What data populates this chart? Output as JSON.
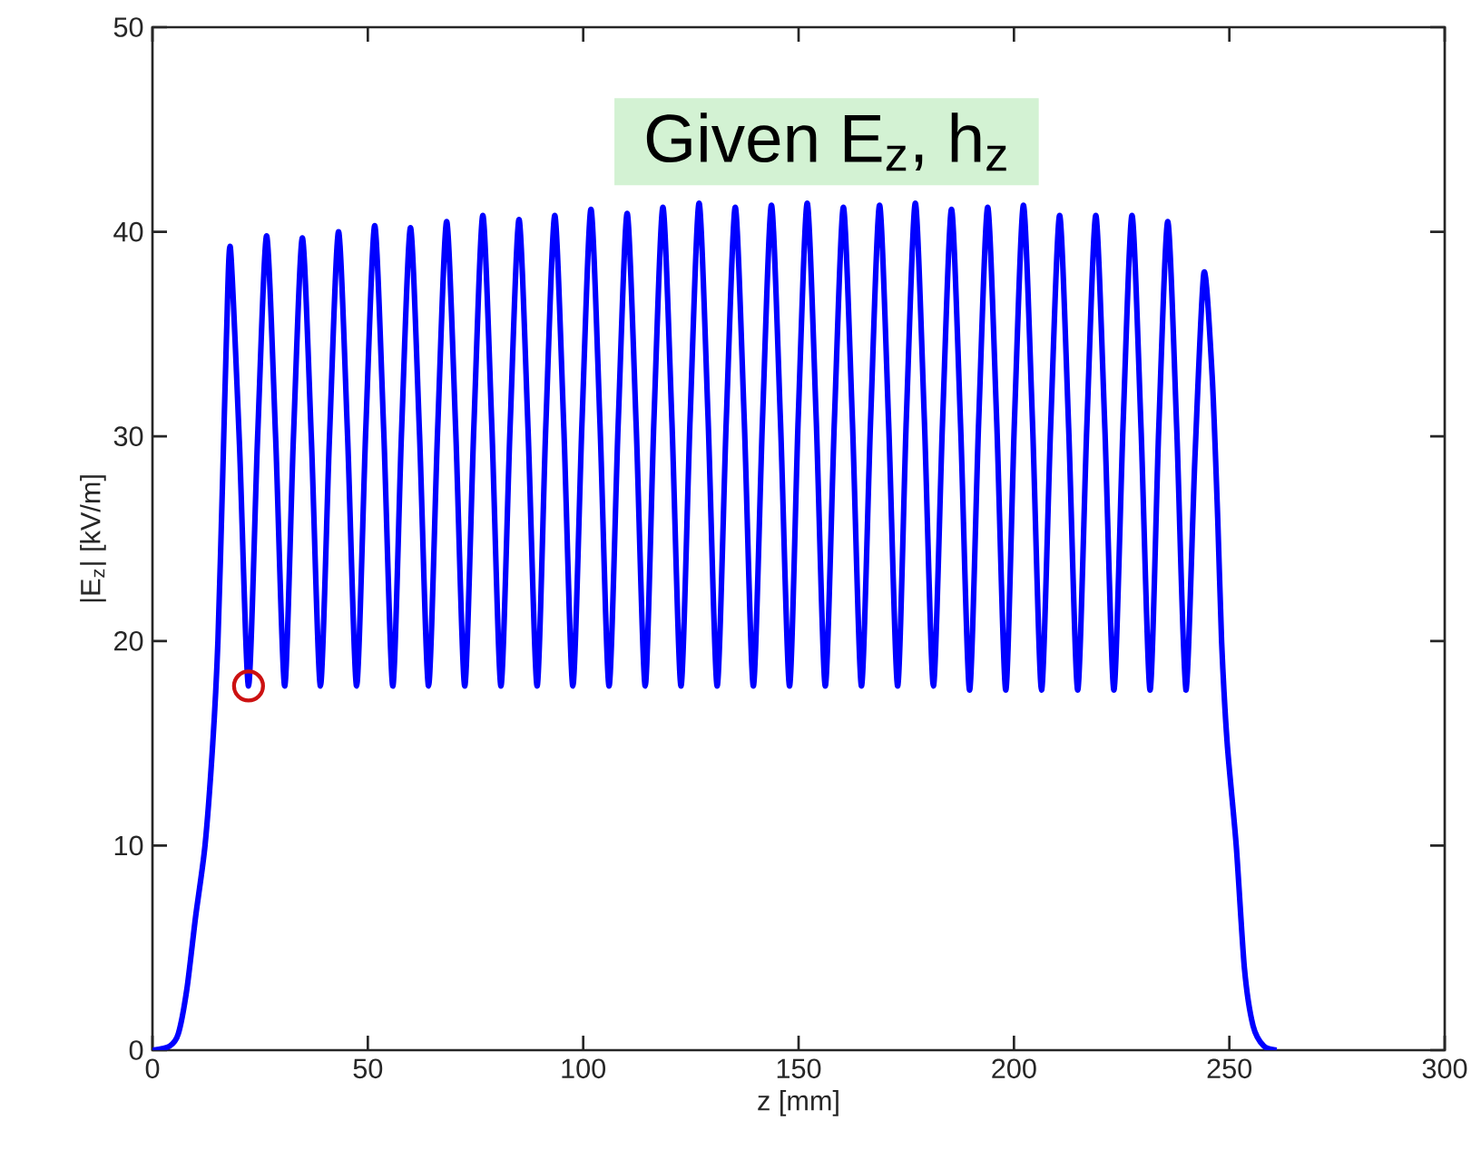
{
  "chart_data": {
    "type": "line",
    "xlabel": "z [mm]",
    "ylabel": "|E$_{z}$| [kV/m]",
    "annotations": [
      "Given E$_{z}$, h$_{z}$"
    ],
    "xlim": [
      0,
      300
    ],
    "ylim": [
      0,
      50
    ],
    "xticks": [
      0,
      50,
      100,
      150,
      200,
      250,
      300
    ],
    "yticks": [
      0,
      10,
      20,
      30,
      40,
      50
    ],
    "series": [
      {
        "color": "#0000ff",
        "line_style": "solid",
        "x": [
          0,
          4,
          6,
          8,
          10,
          12.2,
          14,
          15.2,
          16.3,
          17.2,
          18.1,
          20.2,
          22.3,
          24.4,
          26.5,
          28.6,
          30.7,
          32.7,
          34.8,
          36.9,
          39.0,
          41.1,
          43.2,
          45.3,
          47.4,
          49.5,
          51.6,
          53.7,
          55.8,
          57.8,
          59.9,
          62.0,
          64.1,
          66.2,
          68.3,
          70.4,
          72.5,
          74.6,
          76.7,
          78.8,
          80.9,
          83.0,
          85.1,
          87.2,
          89.3,
          91.3,
          93.4,
          95.5,
          97.6,
          99.7,
          101.8,
          103.9,
          106.0,
          108.1,
          110.2,
          112.3,
          114.4,
          116.4,
          118.5,
          120.6,
          122.7,
          124.8,
          126.9,
          129.0,
          131.1,
          133.2,
          135.3,
          137.4,
          139.5,
          141.6,
          143.7,
          145.8,
          147.9,
          149.9,
          152.0,
          154.1,
          156.2,
          158.3,
          160.4,
          162.5,
          164.6,
          166.7,
          168.8,
          170.9,
          173.0,
          175.0,
          177.1,
          179.2,
          181.3,
          183.4,
          185.5,
          187.6,
          189.7,
          191.8,
          193.9,
          196.0,
          198.1,
          200.1,
          202.2,
          204.3,
          206.4,
          208.5,
          210.6,
          212.7,
          214.8,
          216.9,
          219.0,
          221.1,
          223.2,
          225.3,
          227.4,
          229.5,
          231.6,
          233.6,
          235.7,
          237.8,
          239.9,
          242.0,
          244.1,
          246,
          247.3,
          248.2,
          249.5,
          251.6,
          253.5,
          255.5,
          258,
          261
        ],
        "values": [
          0,
          0.2,
          0.8,
          3,
          6.5,
          10,
          15,
          20,
          28,
          35,
          39.2,
          29.6,
          17.8,
          29.9,
          39.8,
          29.9,
          17.8,
          29.8,
          39.7,
          29.8,
          17.8,
          30.0,
          40.0,
          30.0,
          17.8,
          30.2,
          40.3,
          30.2,
          17.8,
          30.1,
          40.2,
          30.1,
          17.8,
          30.3,
          40.5,
          30.3,
          17.8,
          30.4,
          40.8,
          30.4,
          17.8,
          30.3,
          40.6,
          30.3,
          17.8,
          30.4,
          40.8,
          30.4,
          17.8,
          30.6,
          41.1,
          30.6,
          17.8,
          30.5,
          40.9,
          30.5,
          17.8,
          30.7,
          41.2,
          30.7,
          17.8,
          30.8,
          41.4,
          30.8,
          17.8,
          30.7,
          41.2,
          30.7,
          17.8,
          30.7,
          41.3,
          30.7,
          17.8,
          30.8,
          41.4,
          30.8,
          17.8,
          30.7,
          41.2,
          30.7,
          17.8,
          30.7,
          41.3,
          30.7,
          17.8,
          30.8,
          41.4,
          30.8,
          17.8,
          30.6,
          41.1,
          30.6,
          17.6,
          30.7,
          41.2,
          30.7,
          17.6,
          30.7,
          41.3,
          30.7,
          17.6,
          30.4,
          40.8,
          30.4,
          17.6,
          30.4,
          40.8,
          30.4,
          17.6,
          30.4,
          40.8,
          30.4,
          17.6,
          30.3,
          40.5,
          30.3,
          17.6,
          28.9,
          38.0,
          33,
          26,
          20,
          15,
          10,
          4,
          1.2,
          0.2,
          0
        ]
      },
      {
        "type": "scatter",
        "color": "#cc1111",
        "marker": "circle",
        "x": [
          22.3
        ],
        "values": [
          17.8
        ]
      }
    ]
  }
}
